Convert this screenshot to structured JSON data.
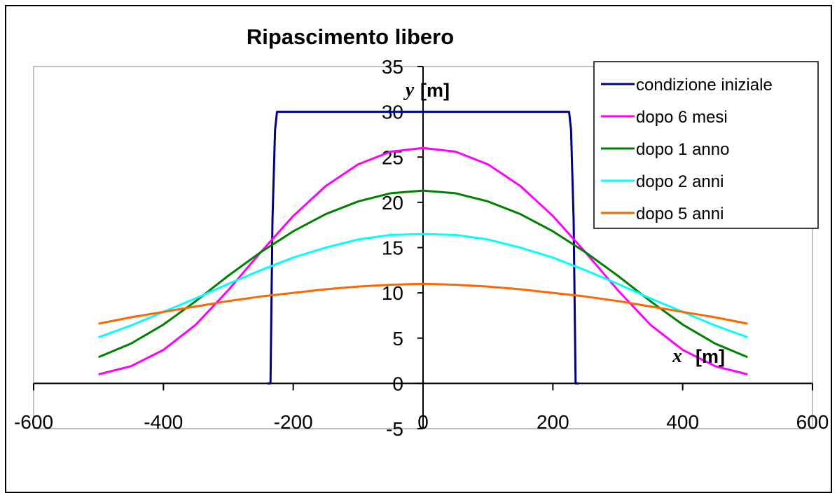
{
  "chart_data": {
    "type": "line",
    "title": "Ripascimento libero",
    "xlabel": {
      "var": "x",
      "unit": "[m]"
    },
    "ylabel": {
      "var": "y",
      "unit": "[m]"
    },
    "xlim": [
      -600,
      600
    ],
    "ylim": [
      -5,
      35
    ],
    "x_ticks": [
      -600,
      -400,
      -200,
      0,
      200,
      400,
      600
    ],
    "y_ticks": [
      -5,
      0,
      5,
      10,
      15,
      20,
      25,
      30,
      35
    ],
    "grid": false,
    "legend_position": "top-right",
    "series": [
      {
        "name": "condizione iniziale",
        "color": "#000080",
        "x": [
          -240,
          -235,
          -232,
          -228,
          -225,
          225,
          228,
          232,
          235,
          240
        ],
        "y": [
          0,
          0,
          18,
          28,
          30,
          30,
          28,
          18,
          0,
          0
        ]
      },
      {
        "name": "dopo 6 mesi",
        "color": "#ff00ff",
        "x": [
          -500,
          -450,
          -400,
          -350,
          -300,
          -250,
          -200,
          -150,
          -100,
          -50,
          0,
          50,
          100,
          150,
          200,
          250,
          300,
          350,
          400,
          450,
          500
        ],
        "y": [
          1.0,
          1.9,
          3.7,
          6.5,
          10.3,
          14.5,
          18.5,
          21.8,
          24.2,
          25.6,
          26.0,
          25.6,
          24.2,
          21.8,
          18.5,
          14.5,
          10.3,
          6.5,
          3.7,
          1.9,
          1.0
        ]
      },
      {
        "name": "dopo 1 anno",
        "color": "#008000",
        "x": [
          -500,
          -450,
          -400,
          -350,
          -300,
          -250,
          -200,
          -150,
          -100,
          -50,
          0,
          50,
          100,
          150,
          200,
          250,
          300,
          350,
          400,
          450,
          500
        ],
        "y": [
          2.9,
          4.4,
          6.5,
          9.1,
          11.9,
          14.5,
          16.8,
          18.7,
          20.1,
          21.0,
          21.3,
          21.0,
          20.1,
          18.7,
          16.8,
          14.5,
          11.9,
          9.1,
          6.5,
          4.4,
          2.9
        ]
      },
      {
        "name": "dopo 2 anni",
        "color": "#00ffff",
        "x": [
          -500,
          -450,
          -400,
          -350,
          -300,
          -250,
          -200,
          -150,
          -100,
          -50,
          0,
          50,
          100,
          150,
          200,
          250,
          300,
          350,
          400,
          450,
          500
        ],
        "y": [
          5.1,
          6.4,
          7.9,
          9.4,
          11.0,
          12.5,
          13.9,
          15.0,
          15.9,
          16.4,
          16.5,
          16.4,
          15.9,
          15.0,
          13.9,
          12.5,
          11.0,
          9.4,
          7.9,
          6.4,
          5.1
        ]
      },
      {
        "name": "dopo 5 anni",
        "color": "#ff6600",
        "x": [
          -500,
          -450,
          -400,
          -350,
          -300,
          -250,
          -200,
          -150,
          -100,
          -50,
          0,
          50,
          100,
          150,
          200,
          250,
          300,
          350,
          400,
          450,
          500
        ],
        "y": [
          6.6,
          7.3,
          7.9,
          8.5,
          9.1,
          9.6,
          10.0,
          10.4,
          10.7,
          10.9,
          11.0,
          10.9,
          10.7,
          10.4,
          10.0,
          9.6,
          9.1,
          8.5,
          7.9,
          7.3,
          6.6
        ]
      }
    ]
  }
}
